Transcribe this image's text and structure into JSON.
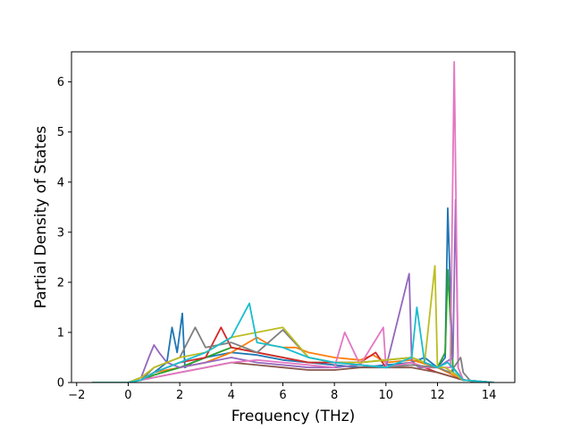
{
  "chart_data": {
    "type": "line",
    "title": "",
    "xlabel": "Frequency (THz)",
    "ylabel": "Partial Density of States",
    "xlim": [
      -2.2,
      15.0
    ],
    "ylim": [
      0,
      6.6
    ],
    "xticks": [
      -2,
      0,
      2,
      4,
      6,
      8,
      10,
      12,
      14
    ],
    "yticks": [
      0,
      1,
      2,
      3,
      4,
      5,
      6
    ],
    "xtick_labels": [
      "−2",
      "0",
      "2",
      "4",
      "6",
      "8",
      "10",
      "12",
      "14"
    ],
    "ytick_labels": [
      "0",
      "1",
      "2",
      "3",
      "4",
      "5",
      "6"
    ],
    "grid": false,
    "legend": "none",
    "x_range_of_data": [
      -1.4,
      14.2
    ],
    "series_colors": [
      "#1f77b4",
      "#ff7f0e",
      "#2ca02c",
      "#d62728",
      "#9467bd",
      "#8c564b",
      "#e377c2",
      "#7f7f7f",
      "#bcbd22",
      "#17becf"
    ],
    "series_count_approx": 50,
    "series": [
      {
        "color": "#1f77b4",
        "x": [
          -1.4,
          0.0,
          0.5,
          1.0,
          1.5,
          1.7,
          1.9,
          2.1,
          2.2,
          2.5,
          3.0,
          4.0,
          5.0,
          6.0,
          7.0,
          8.0,
          9.0,
          10.0,
          11.0,
          11.5,
          12.0,
          12.3,
          12.4,
          12.6,
          13.0,
          14.2
        ],
        "y": [
          0,
          0,
          0.05,
          0.2,
          0.4,
          1.1,
          0.6,
          1.38,
          0.3,
          0.4,
          0.5,
          0.6,
          0.55,
          0.45,
          0.4,
          0.35,
          0.3,
          0.35,
          0.4,
          0.5,
          0.3,
          0.5,
          3.48,
          0.2,
          0.05,
          0
        ]
      },
      {
        "color": "#ff7f0e",
        "x": [
          -1.4,
          0.0,
          0.5,
          1.0,
          2.0,
          3.0,
          4.0,
          5.0,
          5.5,
          6.0,
          6.5,
          7.0,
          8.0,
          9.0,
          9.5,
          10.0,
          11.0,
          12.0,
          13.0,
          14.2
        ],
        "y": [
          0,
          0,
          0.05,
          0.2,
          0.3,
          0.4,
          0.6,
          0.9,
          0.75,
          0.7,
          0.7,
          0.6,
          0.5,
          0.45,
          0.55,
          0.4,
          0.45,
          0.3,
          0.05,
          0
        ]
      },
      {
        "color": "#2ca02c",
        "x": [
          -1.4,
          0.0,
          0.5,
          1.0,
          2.0,
          3.0,
          4.0,
          5.0,
          6.0,
          7.0,
          8.0,
          9.0,
          10.0,
          11.0,
          11.5,
          12.0,
          12.3,
          12.4,
          12.6,
          13.0,
          14.2
        ],
        "y": [
          0,
          0,
          0.05,
          0.15,
          0.3,
          0.5,
          0.7,
          0.6,
          0.5,
          0.4,
          0.4,
          0.4,
          0.45,
          0.5,
          0.4,
          0.3,
          0.6,
          2.25,
          0.3,
          0.05,
          0
        ]
      },
      {
        "color": "#d62728",
        "x": [
          -1.4,
          0.0,
          0.5,
          1.0,
          2.0,
          3.0,
          3.6,
          4.0,
          5.0,
          6.0,
          7.0,
          8.0,
          9.0,
          9.6,
          10.0,
          11.0,
          12.0,
          13.0,
          14.2
        ],
        "y": [
          0,
          0,
          0.05,
          0.2,
          0.4,
          0.5,
          1.1,
          0.7,
          0.6,
          0.5,
          0.4,
          0.4,
          0.4,
          0.6,
          0.3,
          0.4,
          0.2,
          0.05,
          0
        ]
      },
      {
        "color": "#9467bd",
        "x": [
          -1.4,
          0.0,
          0.5,
          0.8,
          1.0,
          1.2,
          1.5,
          2.0,
          3.0,
          4.0,
          5.0,
          6.0,
          7.0,
          8.0,
          9.0,
          10.0,
          10.9,
          11.0,
          11.3,
          12.0,
          12.6,
          12.7,
          12.8,
          13.0,
          14.2
        ],
        "y": [
          0,
          0,
          0.1,
          0.5,
          0.75,
          0.6,
          0.4,
          0.3,
          0.4,
          0.5,
          0.4,
          0.35,
          0.3,
          0.3,
          0.35,
          0.3,
          2.17,
          0.4,
          0.3,
          0.3,
          0.5,
          3.65,
          0.3,
          0.05,
          0
        ]
      },
      {
        "color": "#8c564b",
        "x": [
          -1.4,
          0.0,
          0.5,
          1.0,
          2.0,
          3.0,
          4.0,
          5.0,
          6.0,
          7.0,
          8.0,
          9.0,
          10.0,
          11.0,
          12.0,
          13.0,
          14.2
        ],
        "y": [
          0,
          0,
          0.05,
          0.1,
          0.2,
          0.3,
          0.4,
          0.35,
          0.3,
          0.25,
          0.25,
          0.3,
          0.3,
          0.3,
          0.2,
          0.05,
          0
        ]
      },
      {
        "color": "#e377c2",
        "x": [
          -1.4,
          0.0,
          0.5,
          1.0,
          2.0,
          3.0,
          4.0,
          5.0,
          6.0,
          7.0,
          8.0,
          8.4,
          9.0,
          9.9,
          10.0,
          11.0,
          11.5,
          12.0,
          12.5,
          12.65,
          12.8,
          13.0,
          14.2
        ],
        "y": [
          0,
          0,
          0.05,
          0.1,
          0.2,
          0.3,
          0.4,
          0.45,
          0.4,
          0.35,
          0.3,
          1.0,
          0.35,
          1.1,
          0.3,
          0.4,
          0.3,
          0.3,
          0.3,
          6.4,
          0.3,
          0.05,
          0
        ]
      },
      {
        "color": "#7f7f7f",
        "x": [
          -1.4,
          0.0,
          0.5,
          1.0,
          2.0,
          2.6,
          3.0,
          4.0,
          5.0,
          6.0,
          7.0,
          8.0,
          9.0,
          10.0,
          11.0,
          12.0,
          12.5,
          12.9,
          13.0,
          13.3,
          14.2
        ],
        "y": [
          0,
          0,
          0.05,
          0.3,
          0.5,
          1.1,
          0.7,
          0.8,
          0.6,
          1.05,
          0.5,
          0.4,
          0.35,
          0.3,
          0.35,
          0.3,
          0.2,
          0.5,
          0.2,
          0.02,
          0
        ]
      },
      {
        "color": "#bcbd22",
        "x": [
          -1.4,
          0.0,
          0.5,
          1.0,
          2.0,
          3.0,
          4.0,
          5.0,
          6.0,
          7.0,
          8.0,
          9.0,
          10.0,
          11.0,
          11.5,
          11.9,
          12.0,
          12.3,
          13.0,
          14.2
        ],
        "y": [
          0,
          0,
          0.1,
          0.3,
          0.5,
          0.6,
          0.9,
          1.0,
          1.1,
          0.5,
          0.4,
          0.4,
          0.45,
          0.5,
          0.4,
          2.33,
          0.3,
          0.3,
          0.05,
          0
        ]
      },
      {
        "color": "#17becf",
        "x": [
          -1.4,
          0.0,
          0.5,
          1.0,
          2.0,
          3.0,
          4.0,
          4.7,
          5.0,
          6.0,
          7.0,
          8.0,
          9.0,
          10.0,
          11.0,
          11.2,
          11.5,
          12.0,
          12.4,
          13.0,
          14.2
        ],
        "y": [
          0,
          0,
          0.05,
          0.2,
          0.4,
          0.6,
          0.9,
          1.58,
          0.8,
          0.7,
          0.5,
          0.4,
          0.35,
          0.3,
          0.5,
          1.5,
          0.4,
          0.3,
          0.4,
          0.05,
          0
        ]
      }
    ]
  }
}
